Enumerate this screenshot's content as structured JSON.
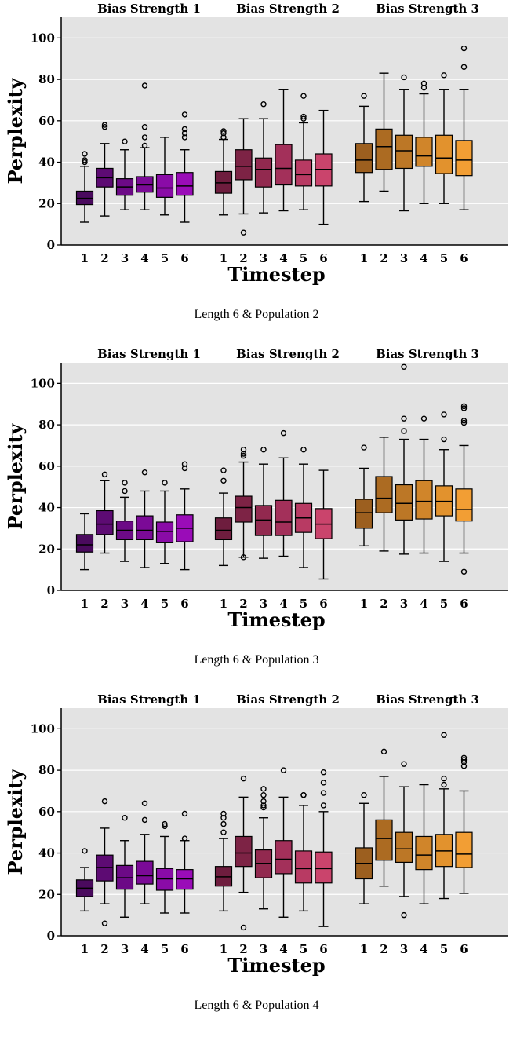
{
  "chart_data": [
    {
      "type": "box",
      "caption": "Length 6 & Population 2",
      "ylabel": "Perplexity",
      "xlabel": "Timestep",
      "ylim": [
        0,
        110
      ],
      "yticks": [
        0,
        20,
        40,
        60,
        80,
        100
      ],
      "grid": true,
      "groups": [
        {
          "title": "Bias Strength 1",
          "categories": [
            "1",
            "2",
            "3",
            "4",
            "5",
            "6"
          ],
          "colors": [
            "#4a0a5e",
            "#5d0b73",
            "#6c0a86",
            "#7b0a97",
            "#8a0ba7",
            "#9a0cb8"
          ],
          "boxes": [
            {
              "whislo": 11,
              "q1": 19.5,
              "med": 22.5,
              "q3": 26,
              "whishi": 38,
              "fliers": [
                40,
                41,
                44
              ]
            },
            {
              "whislo": 14,
              "q1": 28,
              "med": 32.5,
              "q3": 37,
              "whishi": 49,
              "fliers": [
                57,
                58
              ]
            },
            {
              "whislo": 17,
              "q1": 24,
              "med": 28,
              "q3": 32,
              "whishi": 46,
              "fliers": [
                50
              ]
            },
            {
              "whislo": 17,
              "q1": 25.5,
              "med": 29,
              "q3": 33,
              "whishi": 47,
              "fliers": [
                48,
                52,
                57,
                77
              ]
            },
            {
              "whislo": 14.5,
              "q1": 23,
              "med": 27.5,
              "q3": 34,
              "whishi": 52,
              "fliers": []
            },
            {
              "whislo": 11,
              "q1": 24,
              "med": 28.5,
              "q3": 35,
              "whishi": 46,
              "fliers": [
                52,
                54,
                56,
                63
              ]
            }
          ]
        },
        {
          "title": "Bias Strength 2",
          "categories": [
            "1",
            "2",
            "3",
            "4",
            "5",
            "6"
          ],
          "colors": [
            "#6e1d3e",
            "#7d2345",
            "#92294f",
            "#a3305a",
            "#b83a63",
            "#ca446c"
          ],
          "boxes": [
            {
              "whislo": 14.5,
              "q1": 25,
              "med": 30,
              "q3": 35.5,
              "whishi": 51,
              "fliers": [
                52,
                54,
                55
              ]
            },
            {
              "whislo": 15,
              "q1": 31.5,
              "med": 38,
              "q3": 46,
              "whishi": 61,
              "fliers": [
                6
              ]
            },
            {
              "whislo": 15.5,
              "q1": 28,
              "med": 36.5,
              "q3": 42,
              "whishi": 61,
              "fliers": [
                68
              ]
            },
            {
              "whislo": 16.5,
              "q1": 29,
              "med": 37,
              "q3": 48.5,
              "whishi": 75,
              "fliers": []
            },
            {
              "whislo": 17,
              "q1": 28.5,
              "med": 34,
              "q3": 41,
              "whishi": 59,
              "fliers": [
                61,
                62,
                72
              ]
            },
            {
              "whislo": 10,
              "q1": 28.5,
              "med": 36.5,
              "q3": 44,
              "whishi": 65,
              "fliers": []
            }
          ]
        },
        {
          "title": "Bias Strength 3",
          "categories": [
            "1",
            "2",
            "3",
            "4",
            "5",
            "6"
          ],
          "colors": [
            "#9c5f1f",
            "#ac6b22",
            "#bc7726",
            "#d0852a",
            "#e2922d",
            "#f29e34"
          ],
          "boxes": [
            {
              "whislo": 21,
              "q1": 35,
              "med": 41,
              "q3": 49,
              "whishi": 67,
              "fliers": [
                72
              ]
            },
            {
              "whislo": 26,
              "q1": 36.5,
              "med": 47.5,
              "q3": 56,
              "whishi": 83,
              "fliers": []
            },
            {
              "whislo": 16.5,
              "q1": 37,
              "med": 45.5,
              "q3": 53,
              "whishi": 75,
              "fliers": [
                81
              ]
            },
            {
              "whislo": 20,
              "q1": 38,
              "med": 43,
              "q3": 52,
              "whishi": 73,
              "fliers": [
                76,
                78
              ]
            },
            {
              "whislo": 20,
              "q1": 34.5,
              "med": 42,
              "q3": 53,
              "whishi": 75,
              "fliers": [
                82
              ]
            },
            {
              "whislo": 17,
              "q1": 33.5,
              "med": 41,
              "q3": 50.5,
              "whishi": 75,
              "fliers": [
                86,
                95
              ]
            }
          ]
        }
      ]
    },
    {
      "type": "box",
      "caption": "Length 6 & Population 3",
      "ylabel": "Perplexity",
      "xlabel": "Timestep",
      "ylim": [
        0,
        110
      ],
      "yticks": [
        0,
        20,
        40,
        60,
        80,
        100
      ],
      "grid": true,
      "groups": [
        {
          "title": "Bias Strength 1",
          "categories": [
            "1",
            "2",
            "3",
            "4",
            "5",
            "6"
          ],
          "colors": [
            "#4a0a5e",
            "#5d0b73",
            "#6c0a86",
            "#7b0a97",
            "#8a0ba7",
            "#9a0cb8"
          ],
          "boxes": [
            {
              "whislo": 10,
              "q1": 18.5,
              "med": 22,
              "q3": 27,
              "whishi": 37,
              "fliers": []
            },
            {
              "whislo": 18,
              "q1": 27,
              "med": 32,
              "q3": 38.5,
              "whishi": 53,
              "fliers": [
                56
              ]
            },
            {
              "whislo": 14,
              "q1": 24.5,
              "med": 29,
              "q3": 33.5,
              "whishi": 45,
              "fliers": [
                48,
                52
              ]
            },
            {
              "whislo": 11,
              "q1": 24.5,
              "med": 29,
              "q3": 36,
              "whishi": 48,
              "fliers": [
                57
              ]
            },
            {
              "whislo": 13,
              "q1": 23,
              "med": 28.5,
              "q3": 33,
              "whishi": 48,
              "fliers": [
                52
              ]
            },
            {
              "whislo": 10,
              "q1": 23.5,
              "med": 30,
              "q3": 36.5,
              "whishi": 49,
              "fliers": [
                59,
                61
              ]
            }
          ]
        },
        {
          "title": "Bias Strength 2",
          "categories": [
            "1",
            "2",
            "3",
            "4",
            "5",
            "6"
          ],
          "colors": [
            "#6e1d3e",
            "#7d2345",
            "#92294f",
            "#a3305a",
            "#b83a63",
            "#ca446c"
          ],
          "boxes": [
            {
              "whislo": 12,
              "q1": 24.5,
              "med": 29,
              "q3": 35,
              "whishi": 47,
              "fliers": [
                53,
                58
              ]
            },
            {
              "whislo": 16,
              "q1": 33,
              "med": 40,
              "q3": 45.5,
              "whishi": 62,
              "fliers": [
                16,
                65,
                66,
                68
              ]
            },
            {
              "whislo": 15.5,
              "q1": 26.5,
              "med": 34,
              "q3": 41,
              "whishi": 61,
              "fliers": [
                68
              ]
            },
            {
              "whislo": 16.5,
              "q1": 26.5,
              "med": 33,
              "q3": 43.5,
              "whishi": 64,
              "fliers": [
                76
              ]
            },
            {
              "whislo": 11,
              "q1": 28,
              "med": 35,
              "q3": 42,
              "whishi": 61,
              "fliers": [
                68
              ]
            },
            {
              "whislo": 5.5,
              "q1": 25,
              "med": 32,
              "q3": 39.5,
              "whishi": 58,
              "fliers": []
            }
          ]
        },
        {
          "title": "Bias Strength 3",
          "categories": [
            "1",
            "2",
            "3",
            "4",
            "5",
            "6"
          ],
          "colors": [
            "#9c5f1f",
            "#ac6b22",
            "#bc7726",
            "#d0852a",
            "#e2922d",
            "#f29e34"
          ],
          "boxes": [
            {
              "whislo": 21.5,
              "q1": 30,
              "med": 37.5,
              "q3": 44,
              "whishi": 59,
              "fliers": [
                69
              ]
            },
            {
              "whislo": 19,
              "q1": 37.5,
              "med": 44.5,
              "q3": 55,
              "whishi": 74,
              "fliers": []
            },
            {
              "whislo": 17.5,
              "q1": 34,
              "med": 42,
              "q3": 51,
              "whishi": 73,
              "fliers": [
                77,
                83,
                108
              ]
            },
            {
              "whislo": 18,
              "q1": 34.5,
              "med": 43,
              "q3": 53,
              "whishi": 73,
              "fliers": [
                83
              ]
            },
            {
              "whislo": 14,
              "q1": 36,
              "med": 43,
              "q3": 50.5,
              "whishi": 68,
              "fliers": [
                73,
                85
              ]
            },
            {
              "whislo": 18,
              "q1": 33.5,
              "med": 39,
              "q3": 49,
              "whishi": 70,
              "fliers": [
                9,
                81,
                82,
                88,
                89
              ]
            }
          ]
        }
      ]
    },
    {
      "type": "box",
      "caption": "Length 6 & Population 4",
      "ylabel": "Perplexity",
      "xlabel": "Timestep",
      "ylim": [
        0,
        110
      ],
      "yticks": [
        0,
        20,
        40,
        60,
        80,
        100
      ],
      "grid": true,
      "groups": [
        {
          "title": "Bias Strength 1",
          "categories": [
            "1",
            "2",
            "3",
            "4",
            "5",
            "6"
          ],
          "colors": [
            "#4a0a5e",
            "#5d0b73",
            "#6c0a86",
            "#7b0a97",
            "#8a0ba7",
            "#9a0cb8"
          ],
          "boxes": [
            {
              "whislo": 12,
              "q1": 19,
              "med": 23,
              "q3": 27,
              "whishi": 33,
              "fliers": [
                41
              ]
            },
            {
              "whislo": 15.5,
              "q1": 26.5,
              "med": 33,
              "q3": 39,
              "whishi": 52,
              "fliers": [
                6,
                65
              ]
            },
            {
              "whislo": 9,
              "q1": 22.5,
              "med": 28,
              "q3": 34,
              "whishi": 46,
              "fliers": [
                57
              ]
            },
            {
              "whislo": 15.5,
              "q1": 25,
              "med": 29,
              "q3": 36,
              "whishi": 49,
              "fliers": [
                56,
                64
              ]
            },
            {
              "whislo": 11,
              "q1": 22,
              "med": 27.5,
              "q3": 32.5,
              "whishi": 48,
              "fliers": [
                53,
                54
              ]
            },
            {
              "whislo": 11,
              "q1": 22.5,
              "med": 27.5,
              "q3": 32,
              "whishi": 46,
              "fliers": [
                47,
                59
              ]
            }
          ]
        },
        {
          "title": "Bias Strength 2",
          "categories": [
            "1",
            "2",
            "3",
            "4",
            "5",
            "6"
          ],
          "colors": [
            "#6e1d3e",
            "#7d2345",
            "#92294f",
            "#a3305a",
            "#b83a63",
            "#ca446c"
          ],
          "boxes": [
            {
              "whislo": 12,
              "q1": 24,
              "med": 28.5,
              "q3": 33.5,
              "whishi": 47,
              "fliers": [
                50,
                54,
                57,
                59
              ]
            },
            {
              "whislo": 21,
              "q1": 33.5,
              "med": 40,
              "q3": 48,
              "whishi": 67,
              "fliers": [
                4,
                76
              ]
            },
            {
              "whislo": 13,
              "q1": 28,
              "med": 35,
              "q3": 41.5,
              "whishi": 57,
              "fliers": [
                62,
                63,
                65,
                68,
                71
              ]
            },
            {
              "whislo": 9,
              "q1": 30,
              "med": 37,
              "q3": 46,
              "whishi": 67,
              "fliers": [
                80
              ]
            },
            {
              "whislo": 12,
              "q1": 25.5,
              "med": 32.5,
              "q3": 41,
              "whishi": 63,
              "fliers": [
                68,
                68
              ]
            },
            {
              "whislo": 4.5,
              "q1": 25.5,
              "med": 32.5,
              "q3": 40.5,
              "whishi": 60,
              "fliers": [
                63,
                69,
                74,
                79
              ]
            }
          ]
        },
        {
          "title": "Bias Strength 3",
          "categories": [
            "1",
            "2",
            "3",
            "4",
            "5",
            "6"
          ],
          "colors": [
            "#9c5f1f",
            "#ac6b22",
            "#bc7726",
            "#d0852a",
            "#e2922d",
            "#f29e34"
          ],
          "boxes": [
            {
              "whislo": 15.5,
              "q1": 27.5,
              "med": 35,
              "q3": 42.5,
              "whishi": 64,
              "fliers": [
                68
              ]
            },
            {
              "whislo": 24,
              "q1": 36.5,
              "med": 47,
              "q3": 56,
              "whishi": 77,
              "fliers": [
                89
              ]
            },
            {
              "whislo": 19,
              "q1": 35.5,
              "med": 42,
              "q3": 50,
              "whishi": 72,
              "fliers": [
                10,
                83
              ]
            },
            {
              "whislo": 15.5,
              "q1": 32,
              "med": 39,
              "q3": 48,
              "whishi": 73,
              "fliers": []
            },
            {
              "whislo": 18,
              "q1": 33.5,
              "med": 41,
              "q3": 49,
              "whishi": 71,
              "fliers": [
                73,
                76,
                97
              ]
            },
            {
              "whislo": 20.5,
              "q1": 33,
              "med": 39.5,
              "q3": 50,
              "whishi": 70,
              "fliers": [
                82,
                84,
                85,
                86
              ]
            }
          ]
        }
      ]
    }
  ]
}
